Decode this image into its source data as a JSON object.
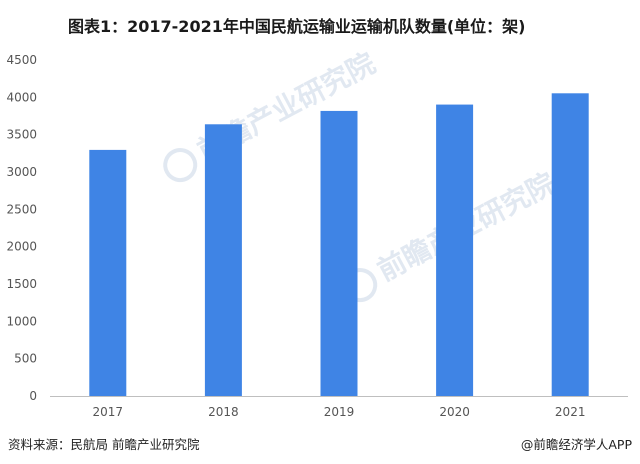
{
  "header": {
    "title": "图表1：2017-2021年中国民航运输业运输机队数量(单位：架)"
  },
  "footer": {
    "source": "资料来源：民航局 前瞻产业研究院",
    "credit": "@前瞻经济学人APP"
  },
  "watermark": {
    "text": "前瞻产业研究院"
  },
  "chart_data": {
    "type": "bar",
    "categories": [
      "2017",
      "2018",
      "2019",
      "2020",
      "2021"
    ],
    "values": [
      3296,
      3639,
      3818,
      3903,
      4054
    ],
    "title": "图表1：2017-2021年中国民航运输业运输机队数量(单位：架)",
    "xlabel": "",
    "ylabel": "",
    "ylim": [
      0,
      4500
    ],
    "yticks": [
      0,
      500,
      1000,
      1500,
      2000,
      2500,
      3000,
      3500,
      4000,
      4500
    ],
    "grid": false,
    "bar_color": "#3f84e5",
    "axis_color": "#bfbfbf"
  }
}
